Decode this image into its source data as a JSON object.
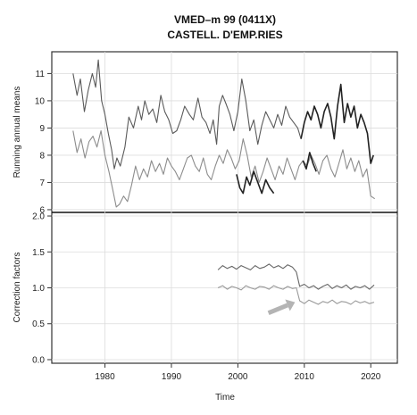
{
  "chart_data": {
    "type": "line",
    "title": "VMED–m   99 (0411X)",
    "subtitle": "CASTELL. D'EMP.RIES",
    "xlabel": "Time",
    "x_ticks": [
      "1980",
      "1990",
      "2000",
      "2010",
      "2020"
    ],
    "xlim": [
      1972,
      2024
    ],
    "grid": true,
    "panels": [
      {
        "name": "running-means",
        "ylabel": "Running annual means",
        "ylim": [
          5.9,
          11.8
        ],
        "y_ticks": [
          "6",
          "7",
          "8",
          "9",
          "10",
          "11"
        ],
        "series": [
          {
            "color": "#5a5a5a",
            "x": [
              1975.2,
              1975.8,
              1976.3,
              1976.9,
              1977.5,
              1978.1,
              1978.6,
              1979.0,
              1979.5,
              1980.0,
              1980.5,
              1981.0,
              1981.4,
              1981.8,
              1982.3,
              1983.0,
              1983.6,
              1984.3,
              1985.0,
              1985.5,
              1986.0,
              1986.6,
              1987.2,
              1987.8,
              1988.4,
              1989.0,
              1989.6,
              1990.2,
              1990.8,
              1991.4,
              1992.0,
              1992.7,
              1993.3,
              1994.0,
              1994.6,
              1995.2,
              1995.8,
              1996.3,
              1996.8,
              1997.2,
              1997.7,
              1998.2,
              1998.8,
              1999.4,
              2000.0,
              2000.6,
              2001.2,
              2001.8,
              2002.4,
              2003.0,
              2003.6,
              2004.2,
              2004.8,
              2005.4,
              2006.0,
              2006.6,
              2007.2,
              2007.8,
              2008.4,
              2009.0,
              2009.5
            ],
            "y": [
              11.0,
              10.2,
              10.8,
              9.6,
              10.4,
              11.0,
              10.5,
              11.5,
              10.0,
              9.5,
              8.8,
              8.2,
              7.5,
              7.9,
              7.6,
              8.3,
              9.4,
              9.0,
              9.8,
              9.3,
              10.0,
              9.5,
              9.7,
              9.2,
              10.2,
              9.6,
              9.3,
              8.8,
              8.9,
              9.3,
              9.8,
              9.5,
              9.3,
              10.1,
              9.4,
              9.2,
              8.8,
              9.3,
              8.4,
              9.8,
              10.2,
              9.9,
              9.5,
              8.9,
              9.6,
              10.8,
              10.0,
              8.9,
              9.3,
              8.4,
              9.1,
              9.6,
              9.3,
              9.0,
              9.5,
              9.1,
              9.8,
              9.4,
              9.2,
              9.0,
              8.6
            ]
          },
          {
            "color": "#222222",
            "x": [
              2009.5,
              2010.0,
              2010.5,
              2011.0,
              2011.5,
              2012.0,
              2012.5,
              2013.0,
              2013.5,
              2014.0,
              2014.5,
              2015.0,
              2015.5,
              2016.0,
              2016.5,
              2017.0,
              2017.5,
              2018.0,
              2018.5,
              2019.0,
              2019.5,
              2020.0,
              2020.4
            ],
            "y": [
              8.6,
              9.2,
              9.6,
              9.3,
              9.8,
              9.5,
              9.0,
              9.6,
              9.9,
              9.4,
              8.6,
              9.8,
              10.6,
              9.2,
              9.9,
              9.4,
              9.8,
              9.0,
              9.5,
              9.2,
              8.8,
              7.7,
              8.0
            ]
          },
          {
            "color": "#8c8c8c",
            "x": [
              1975.2,
              1975.8,
              1976.4,
              1977.0,
              1977.6,
              1978.2,
              1978.8,
              1979.4,
              1980.0,
              1980.6,
              1981.2,
              1981.7,
              1982.2,
              1982.8,
              1983.4,
              1984.0,
              1984.6,
              1985.2,
              1985.8,
              1986.4,
              1987.0,
              1987.6,
              1988.2,
              1988.8,
              1989.4,
              1990.0,
              1990.6,
              1991.2,
              1991.8,
              1992.4,
              1993.0,
              1993.6,
              1994.2,
              1994.8,
              1995.4,
              1996.0,
              1996.6,
              1997.2,
              1997.8,
              1998.4,
              1999.0,
              1999.6,
              2000.2,
              2000.8,
              2001.4,
              2002.0,
              2002.6,
              2003.2,
              2003.8,
              2004.4,
              2005.0,
              2005.6,
              2006.2,
              2006.8,
              2007.4,
              2008.0,
              2008.6,
              2009.2,
              2009.8,
              2010.4,
              2011.0,
              2011.6,
              2012.2,
              2012.8,
              2013.4,
              2014.0,
              2014.6,
              2015.2,
              2015.8,
              2016.4,
              2017.0,
              2017.6,
              2018.2,
              2018.8,
              2019.4,
              2020.0,
              2020.6
            ],
            "y": [
              8.9,
              8.1,
              8.6,
              7.9,
              8.5,
              8.7,
              8.3,
              8.9,
              8.0,
              7.4,
              6.7,
              6.1,
              6.2,
              6.5,
              6.3,
              6.9,
              7.6,
              7.1,
              7.5,
              7.2,
              7.8,
              7.4,
              7.7,
              7.3,
              7.9,
              7.6,
              7.4,
              7.1,
              7.5,
              7.9,
              8.0,
              7.6,
              7.4,
              7.9,
              7.3,
              7.1,
              7.6,
              8.0,
              7.7,
              8.2,
              7.9,
              7.5,
              7.8,
              8.6,
              8.0,
              7.2,
              7.6,
              7.0,
              7.4,
              7.9,
              7.5,
              7.1,
              7.6,
              7.3,
              7.9,
              7.5,
              7.1,
              7.6,
              7.8,
              7.6,
              8.0,
              7.7,
              7.3,
              7.8,
              8.0,
              7.5,
              7.2,
              7.7,
              8.2,
              7.5,
              7.9,
              7.4,
              7.8,
              7.2,
              7.5,
              6.5,
              6.4
            ]
          },
          {
            "color": "#222222",
            "x": [
              1999.8,
              2000.3,
              2000.8,
              2001.3,
              2001.8,
              2002.4,
              2003.0,
              2003.6,
              2004.2,
              2004.8,
              2005.4
            ],
            "y": [
              7.3,
              6.8,
              6.6,
              7.2,
              6.9,
              7.4,
              7.0,
              6.6,
              7.1,
              6.8,
              6.6
            ]
          },
          {
            "color": "#222222",
            "x": [
              2009.8,
              2010.3,
              2010.8,
              2011.3,
              2011.8
            ],
            "y": [
              7.8,
              7.5,
              8.1,
              7.7,
              7.4
            ]
          }
        ]
      },
      {
        "name": "correction-factors",
        "ylabel": "Correction factors",
        "ylim": [
          -0.05,
          2.05
        ],
        "y_ticks": [
          "0.0",
          "0.5",
          "1.0",
          "1.5",
          "2.0"
        ],
        "series": [
          {
            "color": "#666666",
            "x": [
              1997.0,
              1997.7,
              1998.4,
              1999.1,
              1999.8,
              2000.5,
              2001.2,
              2001.9,
              2002.6,
              2003.3,
              2004.0,
              2004.7,
              2005.4,
              2006.1,
              2006.8,
              2007.5,
              2008.2,
              2008.8,
              2009.3,
              2010.0,
              2010.7,
              2011.4,
              2012.1,
              2012.8,
              2013.5,
              2014.2,
              2014.9,
              2015.6,
              2016.3,
              2017.0,
              2017.7,
              2018.4,
              2019.1,
              2019.8,
              2020.5
            ],
            "y": [
              1.25,
              1.31,
              1.27,
              1.3,
              1.26,
              1.31,
              1.28,
              1.25,
              1.31,
              1.27,
              1.29,
              1.33,
              1.28,
              1.31,
              1.27,
              1.32,
              1.29,
              1.22,
              1.02,
              1.05,
              1.0,
              1.03,
              0.98,
              1.02,
              1.05,
              0.99,
              1.03,
              1.0,
              1.04,
              0.98,
              1.02,
              1.0,
              1.03,
              0.98,
              1.04
            ]
          },
          {
            "color": "#999999",
            "x": [
              1997.0,
              1997.7,
              1998.4,
              1999.1,
              1999.8,
              2000.5,
              2001.2,
              2001.9,
              2002.6,
              2003.3,
              2004.0,
              2004.7,
              2005.4,
              2006.1,
              2006.8,
              2007.5,
              2008.2,
              2008.8,
              2009.3,
              2010.0,
              2010.7,
              2011.4,
              2012.1,
              2012.8,
              2013.5,
              2014.2,
              2014.9,
              2015.6,
              2016.3,
              2017.0,
              2017.7,
              2018.4,
              2019.1,
              2019.8,
              2020.5
            ],
            "y": [
              1.0,
              1.03,
              0.98,
              1.02,
              1.0,
              0.97,
              1.03,
              1.0,
              0.98,
              1.02,
              1.01,
              0.98,
              1.03,
              1.0,
              0.98,
              1.02,
              0.99,
              1.0,
              0.82,
              0.78,
              0.83,
              0.8,
              0.77,
              0.81,
              0.79,
              0.83,
              0.78,
              0.81,
              0.8,
              0.77,
              0.82,
              0.79,
              0.81,
              0.78,
              0.8
            ]
          }
        ],
        "annotations": [
          {
            "type": "arrow",
            "color": "#b4b4b4",
            "from": [
              2004.6,
              0.65
            ],
            "to": [
              2008.6,
              0.8
            ]
          }
        ]
      }
    ]
  }
}
